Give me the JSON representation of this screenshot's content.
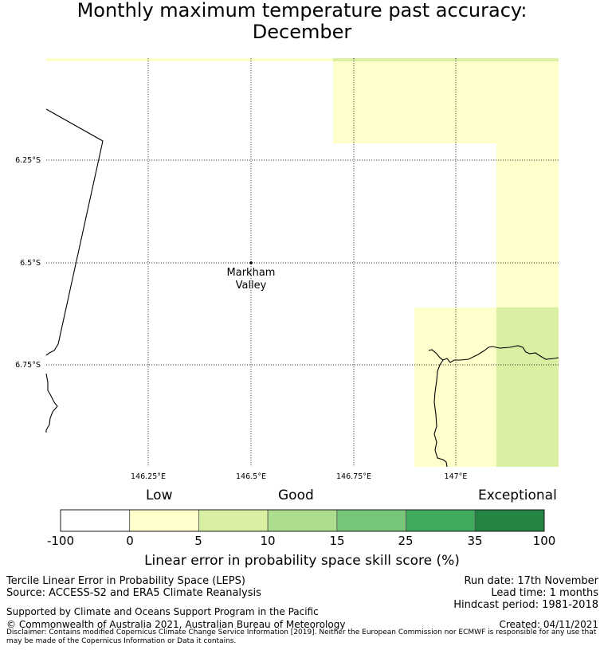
{
  "title": {
    "line1": "Monthly maximum temperature past accuracy:",
    "line2": "December"
  },
  "map": {
    "place_label_line1": "Markham",
    "place_label_line2": "Valley",
    "lat_ticks": [
      "6.25°S",
      "6.5°S",
      "6.75°S"
    ],
    "lon_ticks": [
      "146.25°E",
      "146.5°E",
      "146.75°E",
      "147°E"
    ],
    "colors": {
      "class_0_5": "#ffffcc",
      "class_5_10": "#d9f0a3",
      "coastline": "#000000"
    }
  },
  "colorbar": {
    "categories": [
      "Low",
      "Good",
      "Exceptional"
    ],
    "ticks": [
      "-100",
      "0",
      "5",
      "10",
      "15",
      "25",
      "35",
      "100"
    ],
    "colors": [
      "#ffffff",
      "#ffffcc",
      "#d9f0a3",
      "#addd8e",
      "#78c679",
      "#41ab5d",
      "#238443"
    ],
    "label": "Linear error in probability space skill score (%)"
  },
  "footer": {
    "left_line1": "Tercile Linear Error in Probability Space (LEPS)",
    "left_line2": "Source: ACCESS-S2 and ERA5 Climate Reanalysis",
    "right_line1": "Run date: 17th November",
    "right_line2": "Lead time: 1 months",
    "right_line3": "Hindcast period: 1981-2018",
    "supported": "Supported by Climate and Oceans Support Program in the Pacific",
    "copyright": "© Commonwealth of Australia 2021, Australian Bureau of Meteorology",
    "created": "Created: 04/11/2021",
    "disclaimer": "Disclaimer: Contains modified Copernicus Climate Change Service Information [2019]. Neither the European Commission nor ECMWF is responsible for any use that may be made of the Copernicus Information or Data it contains."
  }
}
